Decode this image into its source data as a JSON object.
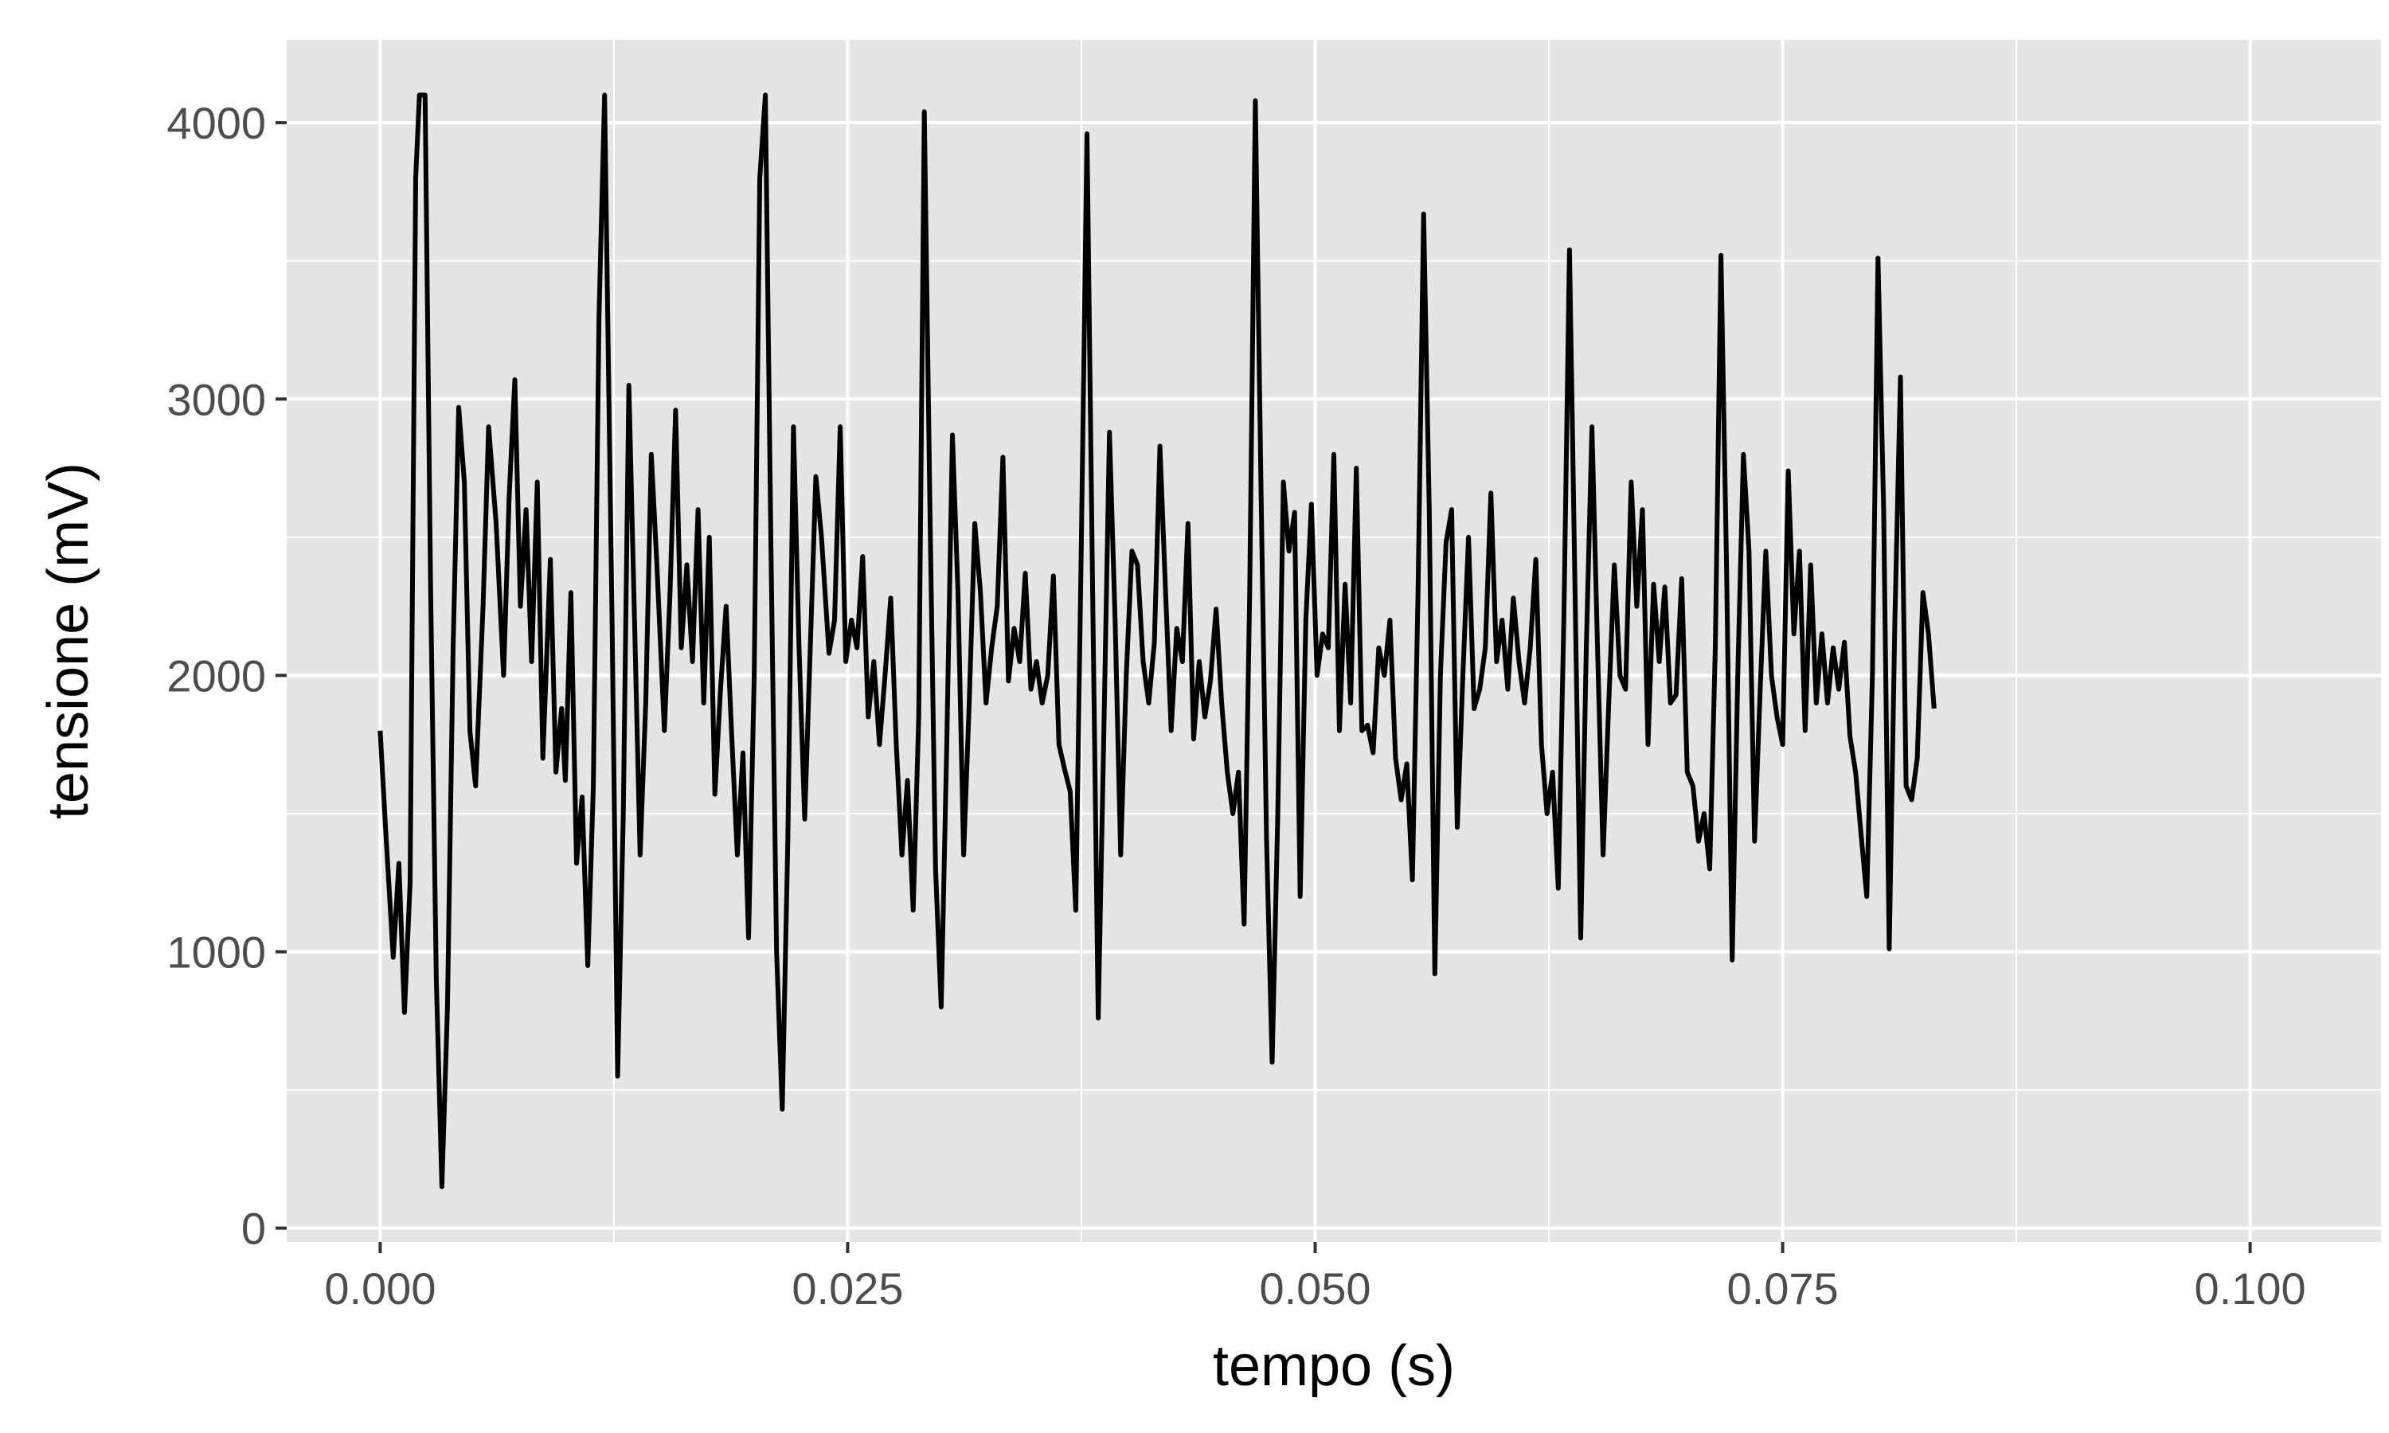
{
  "chart_data": {
    "type": "line",
    "title": "",
    "xlabel": "tempo (s)",
    "ylabel": "tensione (mV)",
    "xlim": [
      -0.005,
      0.107
    ],
    "ylim": [
      -50,
      4300
    ],
    "x_ticks": [
      0.0,
      0.025,
      0.05,
      0.075,
      0.1
    ],
    "x_tick_labels": [
      "0.000",
      "0.025",
      "0.050",
      "0.075",
      "0.100"
    ],
    "y_ticks": [
      0,
      1000,
      2000,
      3000,
      4000
    ],
    "y_tick_labels": [
      "0",
      "1000",
      "2000",
      "3000",
      "4000"
    ],
    "grid": true,
    "colors": {
      "panel": "#e5e5e5",
      "grid": "#ffffff",
      "line": "#000000",
      "tick_label": "#4d4d4d",
      "tick_mark": "#333333"
    },
    "series": [
      {
        "points": [
          [
            0.0,
            1800
          ],
          [
            0.0003,
            1430
          ],
          [
            0.0007,
            980
          ],
          [
            0.001,
            1320
          ],
          [
            0.0013,
            780
          ],
          [
            0.0016,
            1250
          ],
          [
            0.0019,
            3800
          ],
          [
            0.0021,
            4100
          ],
          [
            0.0024,
            4100
          ],
          [
            0.0027,
            2300
          ],
          [
            0.003,
            900
          ],
          [
            0.0033,
            150
          ],
          [
            0.0036,
            800
          ],
          [
            0.0039,
            2100
          ],
          [
            0.0042,
            2970
          ],
          [
            0.0045,
            2700
          ],
          [
            0.0048,
            1800
          ],
          [
            0.0051,
            1600
          ],
          [
            0.0055,
            2250
          ],
          [
            0.0058,
            2900
          ],
          [
            0.0062,
            2550
          ],
          [
            0.0066,
            2000
          ],
          [
            0.0069,
            2650
          ],
          [
            0.0072,
            3070
          ],
          [
            0.0075,
            2250
          ],
          [
            0.0078,
            2600
          ],
          [
            0.0081,
            2050
          ],
          [
            0.0084,
            2700
          ],
          [
            0.0087,
            1700
          ],
          [
            0.0091,
            2420
          ],
          [
            0.0094,
            1650
          ],
          [
            0.0097,
            1880
          ],
          [
            0.0099,
            1620
          ],
          [
            0.0102,
            2300
          ],
          [
            0.0105,
            1320
          ],
          [
            0.0108,
            1560
          ],
          [
            0.0111,
            950
          ],
          [
            0.0114,
            1600
          ],
          [
            0.0117,
            3300
          ],
          [
            0.012,
            4100
          ],
          [
            0.0124,
            2200
          ],
          [
            0.0127,
            550
          ],
          [
            0.013,
            1500
          ],
          [
            0.0133,
            3050
          ],
          [
            0.0136,
            2200
          ],
          [
            0.0139,
            1350
          ],
          [
            0.0142,
            1900
          ],
          [
            0.0145,
            2800
          ],
          [
            0.0148,
            2400
          ],
          [
            0.0152,
            1800
          ],
          [
            0.0155,
            2300
          ],
          [
            0.0158,
            2960
          ],
          [
            0.0161,
            2100
          ],
          [
            0.0164,
            2400
          ],
          [
            0.0167,
            2050
          ],
          [
            0.017,
            2600
          ],
          [
            0.0173,
            1900
          ],
          [
            0.0176,
            2500
          ],
          [
            0.0179,
            1570
          ],
          [
            0.0182,
            1950
          ],
          [
            0.0185,
            2250
          ],
          [
            0.0188,
            1780
          ],
          [
            0.0191,
            1350
          ],
          [
            0.0194,
            1720
          ],
          [
            0.0197,
            1050
          ],
          [
            0.02,
            2000
          ],
          [
            0.0203,
            3800
          ],
          [
            0.0206,
            4100
          ],
          [
            0.0209,
            2450
          ],
          [
            0.0212,
            1000
          ],
          [
            0.0215,
            430
          ],
          [
            0.0218,
            1400
          ],
          [
            0.0221,
            2900
          ],
          [
            0.0224,
            2100
          ],
          [
            0.0227,
            1480
          ],
          [
            0.023,
            2100
          ],
          [
            0.0233,
            2720
          ],
          [
            0.0236,
            2500
          ],
          [
            0.024,
            2080
          ],
          [
            0.0243,
            2200
          ],
          [
            0.0246,
            2900
          ],
          [
            0.0249,
            2050
          ],
          [
            0.0252,
            2200
          ],
          [
            0.0255,
            2100
          ],
          [
            0.0258,
            2430
          ],
          [
            0.0261,
            1850
          ],
          [
            0.0264,
            2050
          ],
          [
            0.0267,
            1750
          ],
          [
            0.027,
            2000
          ],
          [
            0.0273,
            2280
          ],
          [
            0.0276,
            1750
          ],
          [
            0.0279,
            1350
          ],
          [
            0.0282,
            1620
          ],
          [
            0.0285,
            1150
          ],
          [
            0.0288,
            1850
          ],
          [
            0.0291,
            4040
          ],
          [
            0.0294,
            2600
          ],
          [
            0.0297,
            1300
          ],
          [
            0.03,
            800
          ],
          [
            0.0303,
            1750
          ],
          [
            0.0306,
            2870
          ],
          [
            0.0309,
            2300
          ],
          [
            0.0312,
            1350
          ],
          [
            0.0315,
            1900
          ],
          [
            0.0318,
            2550
          ],
          [
            0.0321,
            2300
          ],
          [
            0.0324,
            1900
          ],
          [
            0.0327,
            2100
          ],
          [
            0.033,
            2250
          ],
          [
            0.0333,
            2790
          ],
          [
            0.0336,
            1980
          ],
          [
            0.0339,
            2170
          ],
          [
            0.0342,
            2050
          ],
          [
            0.0345,
            2370
          ],
          [
            0.0348,
            1950
          ],
          [
            0.0351,
            2050
          ],
          [
            0.0354,
            1900
          ],
          [
            0.0357,
            2000
          ],
          [
            0.036,
            2360
          ],
          [
            0.0363,
            1750
          ],
          [
            0.0366,
            1660
          ],
          [
            0.0369,
            1580
          ],
          [
            0.0372,
            1150
          ],
          [
            0.0375,
            2500
          ],
          [
            0.0378,
            3960
          ],
          [
            0.0381,
            2300
          ],
          [
            0.0384,
            760
          ],
          [
            0.0387,
            1800
          ],
          [
            0.039,
            2880
          ],
          [
            0.0393,
            2200
          ],
          [
            0.0396,
            1350
          ],
          [
            0.0399,
            2000
          ],
          [
            0.0402,
            2450
          ],
          [
            0.0405,
            2400
          ],
          [
            0.0408,
            2050
          ],
          [
            0.0411,
            1900
          ],
          [
            0.0414,
            2120
          ],
          [
            0.0417,
            2830
          ],
          [
            0.042,
            2300
          ],
          [
            0.0423,
            1800
          ],
          [
            0.0426,
            2170
          ],
          [
            0.0429,
            2050
          ],
          [
            0.0432,
            2550
          ],
          [
            0.0435,
            1770
          ],
          [
            0.0438,
            2050
          ],
          [
            0.0441,
            1850
          ],
          [
            0.0444,
            1980
          ],
          [
            0.0447,
            2240
          ],
          [
            0.045,
            1900
          ],
          [
            0.0453,
            1650
          ],
          [
            0.0456,
            1500
          ],
          [
            0.0459,
            1650
          ],
          [
            0.0462,
            1100
          ],
          [
            0.0465,
            2300
          ],
          [
            0.0468,
            4080
          ],
          [
            0.0471,
            2700
          ],
          [
            0.0474,
            1400
          ],
          [
            0.0477,
            600
          ],
          [
            0.048,
            1500
          ],
          [
            0.0483,
            2700
          ],
          [
            0.0486,
            2450
          ],
          [
            0.0489,
            2590
          ],
          [
            0.0492,
            1200
          ],
          [
            0.0495,
            2200
          ],
          [
            0.0498,
            2620
          ],
          [
            0.0501,
            2000
          ],
          [
            0.0504,
            2150
          ],
          [
            0.0507,
            2100
          ],
          [
            0.051,
            2800
          ],
          [
            0.0513,
            1800
          ],
          [
            0.0516,
            2330
          ],
          [
            0.0519,
            1900
          ],
          [
            0.0522,
            2750
          ],
          [
            0.0525,
            1800
          ],
          [
            0.0528,
            1820
          ],
          [
            0.0531,
            1720
          ],
          [
            0.0534,
            2100
          ],
          [
            0.0537,
            2000
          ],
          [
            0.054,
            2200
          ],
          [
            0.0543,
            1700
          ],
          [
            0.0546,
            1550
          ],
          [
            0.0549,
            1680
          ],
          [
            0.0552,
            1260
          ],
          [
            0.0555,
            2300
          ],
          [
            0.0558,
            3670
          ],
          [
            0.0561,
            2600
          ],
          [
            0.0564,
            920
          ],
          [
            0.0567,
            2000
          ],
          [
            0.057,
            2480
          ],
          [
            0.0573,
            2600
          ],
          [
            0.0576,
            1450
          ],
          [
            0.0579,
            2000
          ],
          [
            0.0582,
            2500
          ],
          [
            0.0585,
            1880
          ],
          [
            0.0588,
            1950
          ],
          [
            0.0591,
            2100
          ],
          [
            0.0594,
            2660
          ],
          [
            0.0597,
            2050
          ],
          [
            0.06,
            2200
          ],
          [
            0.0603,
            1950
          ],
          [
            0.0606,
            2280
          ],
          [
            0.0609,
            2050
          ],
          [
            0.0612,
            1900
          ],
          [
            0.0615,
            2100
          ],
          [
            0.0618,
            2420
          ],
          [
            0.0621,
            1750
          ],
          [
            0.0624,
            1500
          ],
          [
            0.0627,
            1650
          ],
          [
            0.063,
            1230
          ],
          [
            0.0633,
            2200
          ],
          [
            0.0636,
            3540
          ],
          [
            0.0639,
            2300
          ],
          [
            0.0642,
            1050
          ],
          [
            0.0645,
            2100
          ],
          [
            0.0648,
            2900
          ],
          [
            0.0651,
            2100
          ],
          [
            0.0654,
            1350
          ],
          [
            0.0657,
            1900
          ],
          [
            0.066,
            2400
          ],
          [
            0.0663,
            2000
          ],
          [
            0.0666,
            1950
          ],
          [
            0.0669,
            2700
          ],
          [
            0.0672,
            2250
          ],
          [
            0.0675,
            2600
          ],
          [
            0.0678,
            1750
          ],
          [
            0.0681,
            2330
          ],
          [
            0.0684,
            2050
          ],
          [
            0.0687,
            2320
          ],
          [
            0.069,
            1900
          ],
          [
            0.0693,
            1930
          ],
          [
            0.0696,
            2350
          ],
          [
            0.0699,
            1650
          ],
          [
            0.0702,
            1600
          ],
          [
            0.0705,
            1400
          ],
          [
            0.0708,
            1500
          ],
          [
            0.0711,
            1300
          ],
          [
            0.0714,
            2100
          ],
          [
            0.0717,
            3520
          ],
          [
            0.072,
            2400
          ],
          [
            0.0723,
            970
          ],
          [
            0.0726,
            2000
          ],
          [
            0.0729,
            2800
          ],
          [
            0.0732,
            2450
          ],
          [
            0.0735,
            1400
          ],
          [
            0.0738,
            1950
          ],
          [
            0.0741,
            2450
          ],
          [
            0.0744,
            2000
          ],
          [
            0.0747,
            1850
          ],
          [
            0.075,
            1750
          ],
          [
            0.0753,
            2740
          ],
          [
            0.0756,
            2150
          ],
          [
            0.0759,
            2450
          ],
          [
            0.0762,
            1800
          ],
          [
            0.0765,
            2400
          ],
          [
            0.0768,
            1900
          ],
          [
            0.0771,
            2150
          ],
          [
            0.0774,
            1900
          ],
          [
            0.0777,
            2100
          ],
          [
            0.078,
            1950
          ],
          [
            0.0783,
            2120
          ],
          [
            0.0786,
            1780
          ],
          [
            0.0789,
            1650
          ],
          [
            0.0792,
            1420
          ],
          [
            0.0795,
            1200
          ],
          [
            0.0798,
            2000
          ],
          [
            0.0801,
            3510
          ],
          [
            0.0804,
            2600
          ],
          [
            0.0807,
            1010
          ],
          [
            0.081,
            2200
          ],
          [
            0.0813,
            3080
          ],
          [
            0.0816,
            1600
          ],
          [
            0.0819,
            1550
          ],
          [
            0.0822,
            1700
          ],
          [
            0.0825,
            2300
          ],
          [
            0.0828,
            2150
          ],
          [
            0.0831,
            1880
          ]
        ]
      }
    ]
  }
}
